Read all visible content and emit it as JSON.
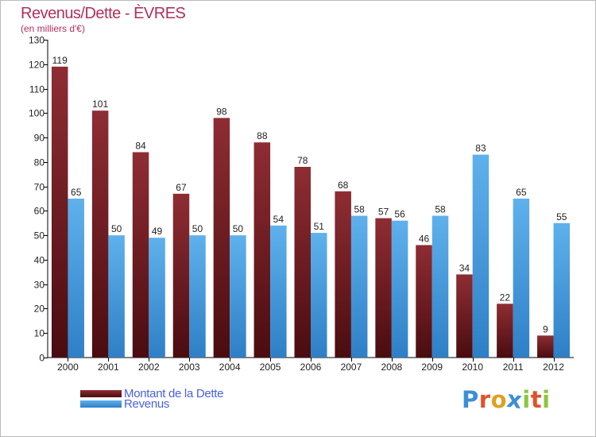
{
  "header": {
    "title": "Revenus/Dette - ÈVRES",
    "subtitle": "(en milliers d'€)"
  },
  "colors": {
    "dette_dark": "#4a0c10",
    "dette_light": "#8e2d33",
    "revenus_dark": "#2e7fc6",
    "revenus_light": "#5fb1ec",
    "title": "#b0305a",
    "legend_text": "#4a5fe0"
  },
  "legend": {
    "dette_label": "Montant de la Dette",
    "revenus_label": "Revenus"
  },
  "logo": {
    "text": "Proxiti",
    "letters": [
      "P",
      "r",
      "o",
      "x",
      "i",
      "t",
      "i"
    ],
    "letter_colors": [
      "#3a8fd6",
      "#e0532a",
      "#e0a020",
      "#3a8fd6",
      "#8cc63f",
      "#e0532a",
      "#8cc63f"
    ]
  },
  "chart_data": {
    "type": "bar",
    "categories": [
      "2000",
      "2001",
      "2002",
      "2003",
      "2004",
      "2005",
      "2006",
      "2007",
      "2008",
      "2009",
      "2010",
      "2011",
      "2012"
    ],
    "series": [
      {
        "name": "Montant de la Dette",
        "values": [
          119,
          101,
          84,
          67,
          98,
          88,
          78,
          68,
          57,
          46,
          34,
          22,
          9
        ]
      },
      {
        "name": "Revenus",
        "values": [
          65,
          50,
          49,
          50,
          50,
          54,
          51,
          58,
          56,
          58,
          83,
          65,
          55
        ]
      }
    ],
    "title": "Revenus/Dette - ÈVRES",
    "xlabel": "",
    "ylabel": "",
    "ylim": [
      0,
      130
    ],
    "yticks": [
      0,
      10,
      20,
      30,
      40,
      50,
      60,
      70,
      80,
      90,
      100,
      110,
      120,
      130
    ],
    "grid": false,
    "legend_position": "bottom-left",
    "data_labels": true
  }
}
